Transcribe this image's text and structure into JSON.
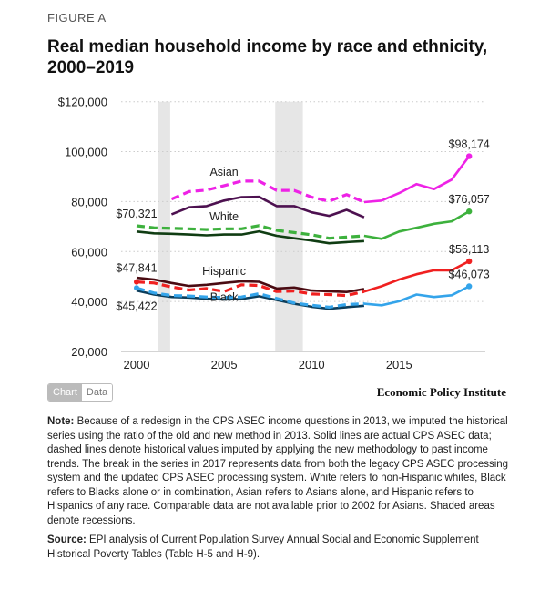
{
  "figure_label": "FIGURE A",
  "title": "Real median household income by race and ethnicity, 2000–2019",
  "toggle": {
    "chart": "Chart",
    "data": "Data",
    "active": "Chart"
  },
  "source_brand": "Economic Policy Institute",
  "notes": {
    "note_label": "Note:",
    "note_text": "Because of a redesign in the CPS ASEC income questions in 2013, we imputed the historical series using the ratio of the old and new method in 2013. Solid lines are actual CPS ASEC data; dashed lines denote historical values imputed by applying the new methodology to past income trends. The break in the series in 2017 represents data from both the legacy CPS ASEC processing system and the updated CPS ASEC processing system. White refers to non-Hispanic whites, Black refers to Blacks alone or in combination, Asian refers to Asians alone, and Hispanic refers to Hispanics of any race. Comparable data are not available prior to 2002 for Asians. Shaded areas denote recessions.",
    "source_label": "Source:",
    "source_text": "EPI analysis of Current Population Survey Annual Social and Economic Supplement Historical Poverty Tables (Table H-5 and H-9)."
  },
  "chart_data": {
    "type": "line",
    "title": "Real median household income by race and ethnicity, 2000–2019",
    "xlim": [
      2000,
      2019
    ],
    "ylim": [
      20000,
      120000
    ],
    "x_ticks": [
      "2000",
      "2005",
      "2010",
      "2015"
    ],
    "y_ticks": [
      "20,000",
      "40,000",
      "60,000",
      "80,000",
      "100,000",
      "$120,000"
    ],
    "y_tick_values": [
      20000,
      40000,
      60000,
      80000,
      100000,
      120000
    ],
    "x_tick_values": [
      2000,
      2005,
      2010,
      2015
    ],
    "grid": "horizontal dotted",
    "recessions": [
      [
        2001.25,
        2001.92
      ],
      [
        2007.92,
        2009.5
      ]
    ],
    "series_labels": [
      {
        "text": "Asian",
        "x": 2005,
        "y": 88200
      },
      {
        "text": "White",
        "x": 2005,
        "y": 70400
      },
      {
        "text": "Hispanic",
        "x": 2005,
        "y": 48500
      },
      {
        "text": "Black",
        "x": 2005,
        "y": 38000
      }
    ],
    "value_labels": [
      {
        "text": "$70,321",
        "side": "left",
        "x": 2000,
        "y": 70321
      },
      {
        "text": "$47,841",
        "side": "left",
        "x": 2000,
        "y": 47841
      },
      {
        "text": "$45,422",
        "side": "left",
        "x": 2000,
        "y": 45422
      },
      {
        "text": "$98,174",
        "side": "right",
        "x": 2019,
        "y": 98174
      },
      {
        "text": "$76,057",
        "side": "right",
        "x": 2019,
        "y": 76057
      },
      {
        "text": "$56,113",
        "side": "right",
        "x": 2019,
        "y": 56113
      },
      {
        "text": "$46,073",
        "side": "right",
        "x": 2019,
        "y": 46073
      }
    ],
    "series": [
      {
        "name": "Asian",
        "style": "dashed",
        "color": "#ee22e6",
        "x": [
          2002,
          2003,
          2004,
          2005,
          2006,
          2007,
          2008,
          2009,
          2010,
          2011,
          2012,
          2013
        ],
        "values": [
          81000,
          84000,
          84600,
          86400,
          88200,
          88200,
          84500,
          84500,
          81800,
          80100,
          82800,
          79800
        ]
      },
      {
        "name": "Asian",
        "style": "solid",
        "color": "#ee22e6",
        "x": [
          2013,
          2014,
          2015,
          2016,
          2017,
          2018,
          2019
        ],
        "values": [
          79800,
          80400,
          83400,
          87000,
          85000,
          88800,
          98174
        ]
      },
      {
        "name": "Asian",
        "style": "solid-old",
        "color": "#4d1150",
        "x": [
          2002,
          2003,
          2004,
          2005,
          2006,
          2007,
          2008,
          2009,
          2010,
          2011,
          2012,
          2013
        ],
        "values": [
          74900,
          77700,
          78200,
          80400,
          81800,
          81900,
          78200,
          78200,
          75700,
          74300,
          76700,
          73700
        ]
      },
      {
        "name": "White",
        "style": "dashed",
        "color": "#3db13d",
        "x": [
          2000,
          2001,
          2002,
          2003,
          2004,
          2005,
          2006,
          2007,
          2008,
          2009,
          2010,
          2011,
          2012,
          2013
        ],
        "values": [
          70321,
          69500,
          69300,
          69100,
          68800,
          69100,
          69100,
          70400,
          68500,
          67600,
          66700,
          65300,
          65800,
          66300
        ]
      },
      {
        "name": "White",
        "style": "solid",
        "color": "#3db13d",
        "x": [
          2013,
          2014,
          2015,
          2016,
          2017,
          2018,
          2019
        ],
        "values": [
          66300,
          65100,
          68000,
          69500,
          71100,
          72100,
          76057
        ]
      },
      {
        "name": "White",
        "style": "solid-old",
        "color": "#103d13",
        "x": [
          2000,
          2001,
          2002,
          2003,
          2004,
          2005,
          2006,
          2007,
          2008,
          2009,
          2010,
          2011,
          2012,
          2013
        ],
        "values": [
          68000,
          67300,
          67100,
          66800,
          66500,
          66800,
          66800,
          68100,
          66300,
          65300,
          64400,
          63300,
          63800,
          64200
        ]
      },
      {
        "name": "Hispanic",
        "style": "solid-old",
        "color": "#4a0b12",
        "x": [
          2000,
          2001,
          2002,
          2003,
          2004,
          2005,
          2006,
          2007,
          2008,
          2009,
          2010,
          2011,
          2012,
          2013
        ],
        "values": [
          49500,
          48800,
          47400,
          46200,
          46700,
          47400,
          48100,
          47900,
          45200,
          45600,
          44400,
          44100,
          43800,
          45000
        ]
      },
      {
        "name": "Hispanic",
        "style": "dashed",
        "color": "#f02020",
        "x": [
          2000,
          2001,
          2002,
          2003,
          2004,
          2005,
          2006,
          2007,
          2008,
          2009,
          2010,
          2011,
          2012,
          2013
        ],
        "values": [
          47841,
          47400,
          45800,
          44600,
          45200,
          44000,
          46700,
          46400,
          44000,
          44200,
          43000,
          42800,
          42400,
          44000
        ]
      },
      {
        "name": "Hispanic",
        "style": "solid",
        "color": "#f02020",
        "x": [
          2013,
          2014,
          2015,
          2016,
          2017,
          2018,
          2019
        ],
        "values": [
          44000,
          46100,
          48800,
          50900,
          52500,
          52500,
          56113
        ]
      },
      {
        "name": "Black",
        "style": "solid-old",
        "color": "#0c3d5a",
        "x": [
          2000,
          2001,
          2002,
          2003,
          2004,
          2005,
          2006,
          2007,
          2008,
          2009,
          2010,
          2011,
          2012,
          2013
        ],
        "values": [
          44400,
          42800,
          41800,
          41600,
          41100,
          40800,
          41000,
          42100,
          40600,
          39100,
          37900,
          37100,
          37700,
          38300
        ]
      },
      {
        "name": "Black",
        "style": "dashed",
        "color": "#34a4ea",
        "x": [
          2000,
          2001,
          2002,
          2003,
          2004,
          2005,
          2006,
          2007,
          2008,
          2009,
          2010,
          2011,
          2012,
          2013
        ],
        "values": [
          45422,
          43400,
          42400,
          42200,
          41800,
          41600,
          41800,
          43100,
          41200,
          39400,
          38500,
          37700,
          38800,
          39100
        ]
      },
      {
        "name": "Black",
        "style": "solid",
        "color": "#34a4ea",
        "x": [
          2013,
          2014,
          2015,
          2016,
          2017,
          2018,
          2019
        ],
        "values": [
          39100,
          38500,
          40100,
          42800,
          41800,
          42500,
          46073
        ]
      }
    ]
  }
}
